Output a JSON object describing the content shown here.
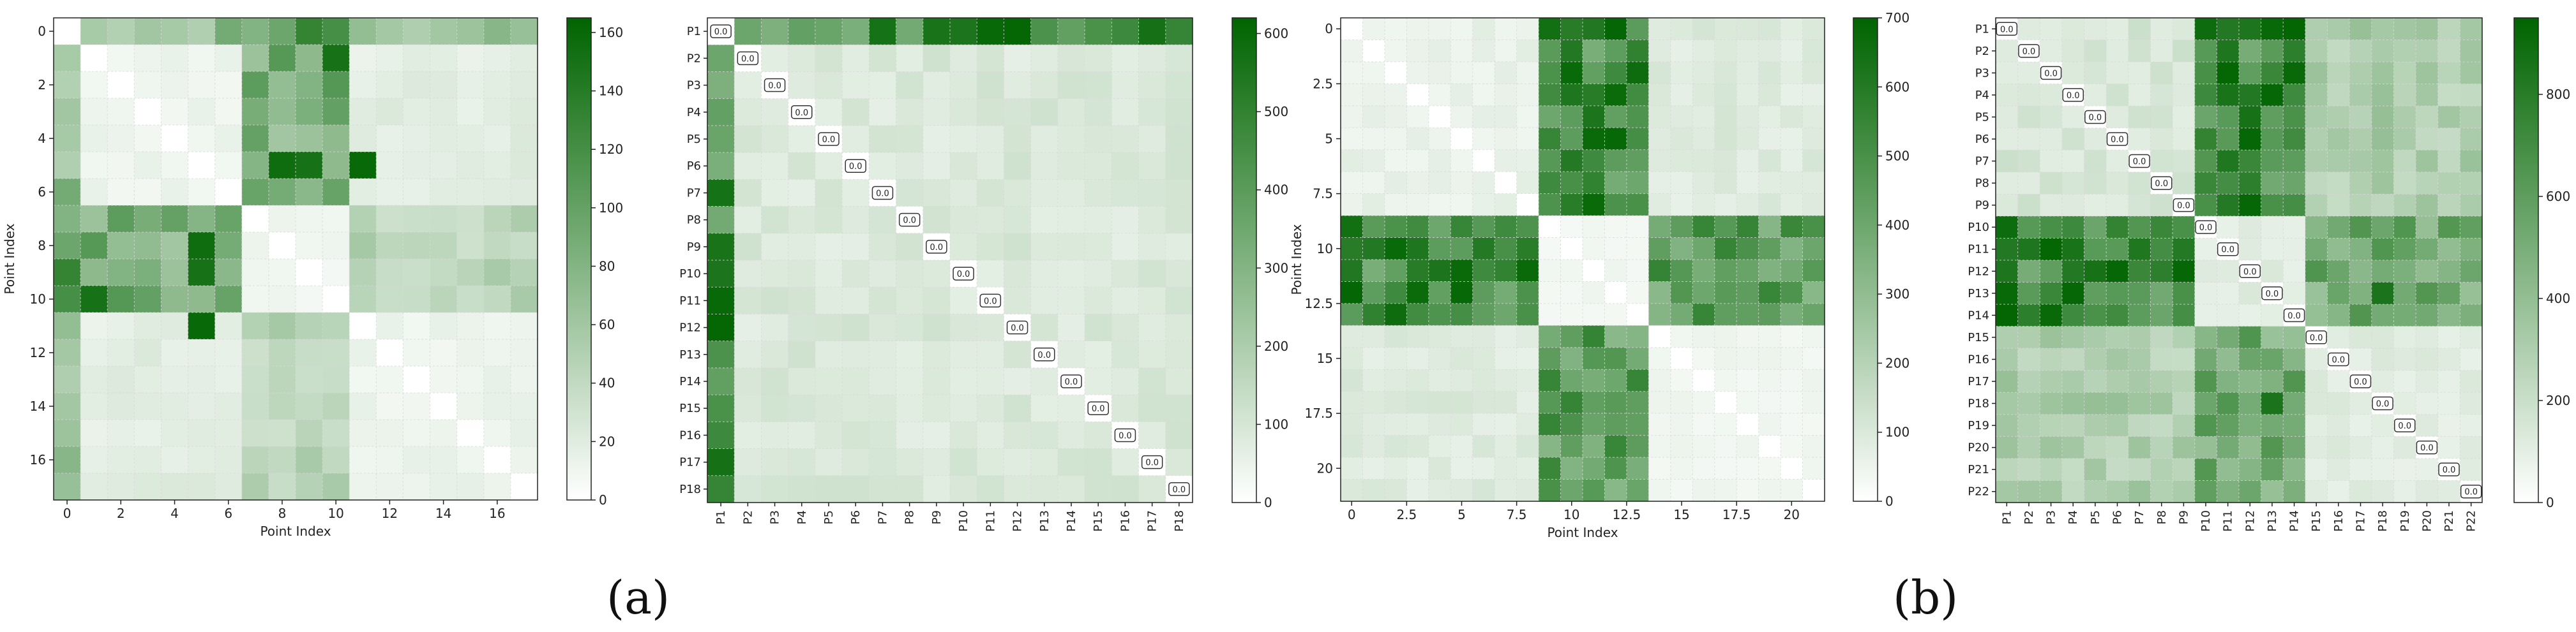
{
  "captions": {
    "a": "(a)",
    "b": "(b)"
  },
  "colors": {
    "low": "#ffffff",
    "high": "#006400",
    "grid": "#d9d9d9",
    "frame": "#222222"
  },
  "chart_data": [
    {
      "type": "heatmap",
      "id": "a-left",
      "n": 18,
      "axis_style": "numeric",
      "xlabel": "Point Index",
      "ylabel": "Point Index",
      "xticks": [
        0,
        2,
        4,
        6,
        8,
        10,
        12,
        14,
        16
      ],
      "yticks": [
        0,
        2,
        4,
        6,
        8,
        10,
        12,
        14,
        16
      ],
      "vmin": 0,
      "vmax": 165,
      "colorbar_ticks": [
        0,
        20,
        40,
        60,
        80,
        100,
        120,
        140,
        160
      ],
      "clusters": [
        [
          0
        ],
        [
          1,
          2,
          3,
          4,
          5,
          6
        ],
        [
          7,
          8,
          9,
          10
        ],
        [
          11,
          12,
          13,
          14,
          15,
          16,
          17
        ]
      ],
      "cluster_means": [
        [
          0,
          70,
          105,
          60
        ],
        [
          70,
          12,
          85,
          18
        ],
        [
          105,
          85,
          10,
          45
        ],
        [
          60,
          18,
          45,
          12
        ]
      ],
      "peak": [
        [
          1,
          10,
          150
        ],
        [
          5,
          11,
          160
        ],
        [
          8,
          5,
          155
        ],
        [
          9,
          5,
          150
        ]
      ],
      "diagonal_labels": false
    },
    {
      "type": "heatmap",
      "id": "a-right",
      "n": 18,
      "axis_style": "labels",
      "labels": [
        "P1",
        "P2",
        "P3",
        "P4",
        "P5",
        "P6",
        "P7",
        "P8",
        "P9",
        "P10",
        "P11",
        "P12",
        "P13",
        "P14",
        "P15",
        "P16",
        "P17",
        "P18"
      ],
      "vmin": 0,
      "vmax": 620,
      "colorbar_ticks": [
        0,
        100,
        200,
        300,
        400,
        500,
        600
      ],
      "clusters": [
        [
          0
        ],
        [
          1,
          2,
          3,
          4,
          5,
          6,
          7,
          8,
          9,
          10,
          11,
          12,
          13,
          14,
          15,
          16,
          17
        ]
      ],
      "cluster_means": [
        [
          0,
          440
        ],
        [
          440,
          90
        ]
      ],
      "peak": [
        [
          0,
          10,
          600
        ],
        [
          0,
          11,
          610
        ],
        [
          0,
          8,
          560
        ]
      ],
      "diagonal_labels": true,
      "diagonal_value": "0.0"
    },
    {
      "type": "heatmap",
      "id": "b-left",
      "n": 22,
      "axis_style": "numeric",
      "xlabel": "Point Index",
      "ylabel": "Point Index",
      "xticks": [
        0.0,
        2.5,
        5.0,
        7.5,
        10.0,
        12.5,
        15.0,
        17.5,
        20.0
      ],
      "yticks": [
        0.0,
        2.5,
        5.0,
        7.5,
        10.0,
        12.5,
        15.0,
        17.5,
        20.0
      ],
      "vmin": 0,
      "vmax": 700,
      "colorbar_ticks": [
        0,
        100,
        200,
        300,
        400,
        500,
        600,
        700
      ],
      "clusters": [
        [
          0,
          1,
          2,
          3,
          4,
          5,
          6,
          7,
          8
        ],
        [
          9,
          10,
          11,
          12,
          13
        ],
        [
          14,
          15,
          16,
          17,
          18,
          19,
          20,
          21
        ]
      ],
      "cluster_means": [
        [
          60,
          520,
          90
        ],
        [
          520,
          40,
          440
        ],
        [
          90,
          440,
          40
        ]
      ],
      "peak": [
        [
          0,
          12,
          690
        ],
        [
          5,
          12,
          680
        ],
        [
          12,
          3,
          670
        ]
      ],
      "diagonal_labels": false
    },
    {
      "type": "heatmap",
      "id": "b-right",
      "n": 22,
      "axis_style": "labels",
      "labels": [
        "P1",
        "P2",
        "P3",
        "P4",
        "P5",
        "P6",
        "P7",
        "P8",
        "P9",
        "P10",
        "P11",
        "P12",
        "P13",
        "P14",
        "P15",
        "P16",
        "P17",
        "P18",
        "P19",
        "P20",
        "P21",
        "P22"
      ],
      "vmin": 0,
      "vmax": 950,
      "colorbar_ticks": [
        0,
        200,
        400,
        600,
        800
      ],
      "clusters": [
        [
          0,
          1,
          2,
          3,
          4,
          5,
          6,
          7,
          8
        ],
        [
          9,
          10,
          11,
          12,
          13
        ],
        [
          14,
          15,
          16,
          17,
          18,
          19,
          20,
          21
        ]
      ],
      "cluster_means": [
        [
          150,
          720,
          300
        ],
        [
          720,
          120,
          520
        ],
        [
          300,
          520,
          110
        ]
      ],
      "peak": [
        [
          0,
          12,
          920
        ],
        [
          0,
          13,
          940
        ],
        [
          12,
          17,
          850
        ]
      ],
      "diagonal_labels": true,
      "diagonal_value": "0.0"
    }
  ]
}
